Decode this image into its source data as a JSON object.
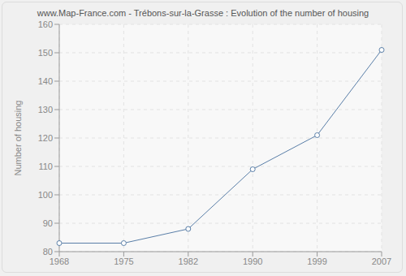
{
  "chart_data": {
    "type": "line",
    "title": "www.Map-France.com - Trébons-sur-la-Grasse : Evolution of the number of housing",
    "y_label": "Number of housing",
    "categories": [
      "1968",
      "1975",
      "1982",
      "1990",
      "1999",
      "2007"
    ],
    "values": [
      83,
      83,
      88,
      109,
      121,
      151
    ],
    "color": "#5a7fa8",
    "ylim": [
      80,
      160
    ],
    "yticks": [
      80,
      90,
      100,
      110,
      120,
      130,
      140,
      150,
      160
    ],
    "grid": true,
    "marker": "circle"
  }
}
